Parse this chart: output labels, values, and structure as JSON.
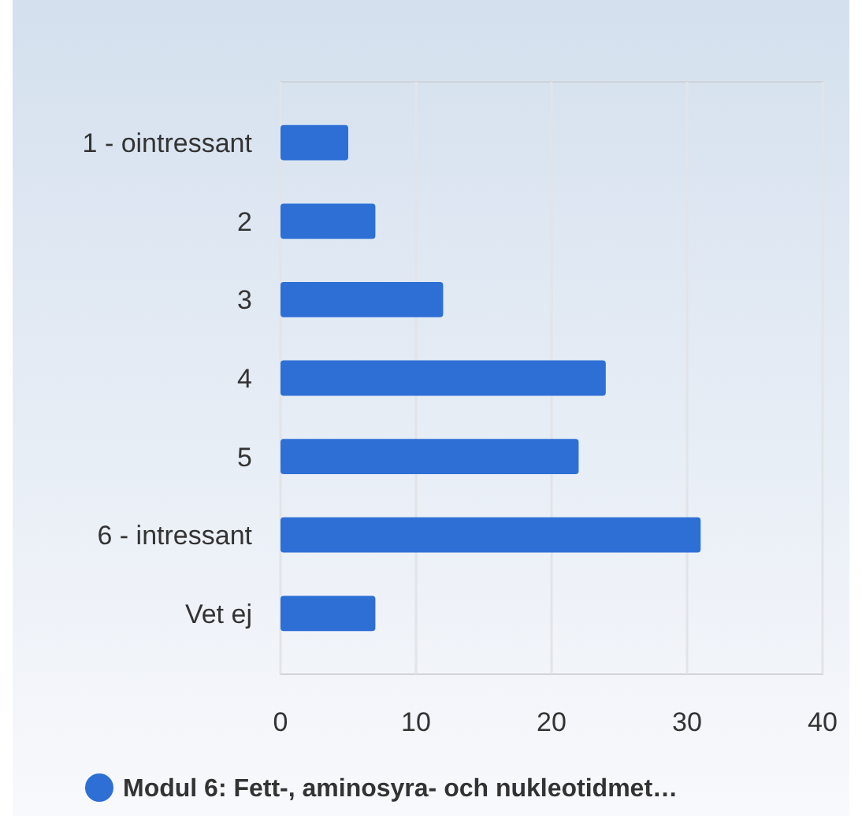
{
  "chart_data": {
    "type": "bar",
    "orientation": "horizontal",
    "categories": [
      "1 - ointressant",
      "2",
      "3",
      "4",
      "5",
      "6  - intressant",
      "Vet ej"
    ],
    "series": [
      {
        "name": "Modul 6: Fett-, aminosyra- och nukleotidmet…",
        "color": "#2e6fd6",
        "values": [
          5,
          7,
          12,
          24,
          22,
          31,
          7
        ]
      }
    ],
    "xlim": [
      0,
      40
    ],
    "xticks": [
      0,
      10,
      20,
      30,
      40
    ],
    "grid": "x",
    "legend": "bottom"
  }
}
